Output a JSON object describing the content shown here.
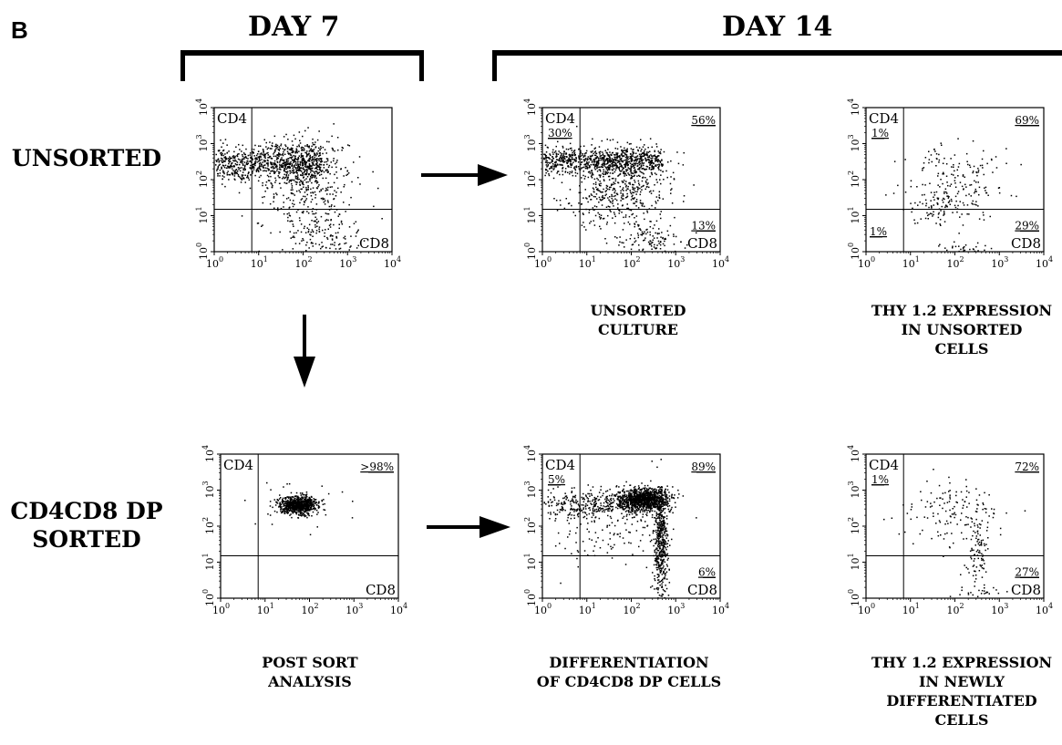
{
  "panel_label": "B",
  "day7_title": "DAY 7",
  "day14_title": "DAY 14",
  "row_labels": {
    "unsorted": "UNSORTED",
    "sorted_line1": "CD4CD8 DP",
    "sorted_line2": "SORTED"
  },
  "captions": {
    "unsorted_culture": [
      "UNSORTED",
      "CULTURE"
    ],
    "thy_unsorted": [
      "THY 1.2 EXPRESSION",
      "IN UNSORTED",
      "CELLS"
    ],
    "post_sort": [
      "POST SORT",
      "ANALYSIS"
    ],
    "differentiation": [
      "DIFFERENTIATION",
      "OF CD4CD8 DP CELLS"
    ],
    "thy_newly": [
      "THY 1.2 EXPRESSION",
      "IN NEWLY",
      "DIFFERENTIATED",
      "CELLS"
    ]
  },
  "chart_data": [
    {
      "type": "scatter",
      "id": "day7-unsorted",
      "xlabel": "CD8",
      "ylabel": "CD4",
      "scale": "log",
      "xlim": [
        1,
        10000
      ],
      "ylim": [
        1,
        10000
      ],
      "tick_labels": [
        "10",
        "10",
        "10",
        "10",
        "10"
      ],
      "tick_exponents": [
        "0",
        "1",
        "2",
        "3",
        "4"
      ],
      "gate": {
        "x": 7,
        "y": 15
      },
      "quadrant_labels": {},
      "clusters": [
        {
          "cx": 1.1,
          "cy": 2.45,
          "sx": 0.9,
          "sy": 0.25,
          "xmin": 0,
          "xmax": 2.4,
          "n": 700
        },
        {
          "cx": 1.9,
          "cy": 2.5,
          "sx": 0.45,
          "sy": 0.35,
          "n": 350
        },
        {
          "cx": 2.1,
          "cy": 1.5,
          "sx": 0.6,
          "sy": 0.6,
          "n": 250
        },
        {
          "cx": 2.5,
          "cy": 0.4,
          "sx": 0.4,
          "sy": 0.3,
          "n": 120
        }
      ]
    },
    {
      "type": "scatter",
      "id": "day14-unsorted-culture",
      "xlabel": "CD8",
      "ylabel": "CD4",
      "scale": "log",
      "xlim": [
        1,
        10000
      ],
      "ylim": [
        1,
        10000
      ],
      "tick_labels": [
        "10",
        "10",
        "10",
        "10",
        "10"
      ],
      "tick_exponents": [
        "0",
        "1",
        "2",
        "3",
        "4"
      ],
      "gate": {
        "x": 7,
        "y": 15
      },
      "quadrant_labels": {
        "upper_left": "30%",
        "upper_right": "56%",
        "lower_right": "13%"
      },
      "clusters": [
        {
          "cx": 1.2,
          "cy": 2.55,
          "sx": 0.85,
          "sy": 0.18,
          "xmin": 0,
          "xmax": 2.7,
          "n": 800
        },
        {
          "cx": 1.8,
          "cy": 2.2,
          "sx": 0.5,
          "sy": 0.4,
          "n": 300
        },
        {
          "cx": 1.6,
          "cy": 1.4,
          "sx": 0.6,
          "sy": 0.4,
          "n": 250
        },
        {
          "cx": 2.4,
          "cy": 0.3,
          "sx": 0.4,
          "sy": 0.25,
          "n": 120
        }
      ]
    },
    {
      "type": "scatter",
      "id": "day14-thy-unsorted",
      "xlabel": "CD8",
      "ylabel": "CD4",
      "scale": "log",
      "xlim": [
        1,
        10000
      ],
      "ylim": [
        1,
        10000
      ],
      "tick_labels": [
        "10",
        "10",
        "10",
        "10",
        "10"
      ],
      "tick_exponents": [
        "0",
        "1",
        "2",
        "3",
        "4"
      ],
      "gate": {
        "x": 7,
        "y": 15
      },
      "quadrant_labels": {
        "upper_left": "1%",
        "upper_right": "69%",
        "lower_right": "29%",
        "lower_left": "1%"
      },
      "clusters": [
        {
          "cx": 2.0,
          "cy": 2.0,
          "sx": 0.55,
          "sy": 0.55,
          "n": 180
        },
        {
          "cx": 1.6,
          "cy": 1.3,
          "sx": 0.4,
          "sy": 0.3,
          "n": 70
        },
        {
          "cx": 2.3,
          "cy": 0.1,
          "sx": 0.3,
          "sy": 0.08,
          "n": 30
        }
      ]
    },
    {
      "type": "scatter",
      "id": "day7-post-sort",
      "xlabel": "CD8",
      "ylabel": "CD4",
      "scale": "log",
      "xlim": [
        1,
        10000
      ],
      "ylim": [
        1,
        10000
      ],
      "tick_labels": [
        "10",
        "10",
        "10",
        "10",
        "10"
      ],
      "tick_exponents": [
        "0",
        "1",
        "2",
        "3",
        "4"
      ],
      "gate": {
        "x": 7,
        "y": 15
      },
      "quadrant_labels": {
        "upper_right": ">98%"
      },
      "clusters": [
        {
          "cx": 1.75,
          "cy": 2.6,
          "sx": 0.22,
          "sy": 0.13,
          "n": 800
        },
        {
          "cx": 1.8,
          "cy": 2.5,
          "sx": 0.6,
          "sy": 0.4,
          "n": 30
        }
      ]
    },
    {
      "type": "scatter",
      "id": "day14-differentiation",
      "xlabel": "CD8",
      "ylabel": "CD4",
      "scale": "log",
      "xlim": [
        1,
        10000
      ],
      "ylim": [
        1,
        10000
      ],
      "tick_labels": [
        "10",
        "10",
        "10",
        "10",
        "10"
      ],
      "tick_exponents": [
        "0",
        "1",
        "2",
        "3",
        "4"
      ],
      "gate": {
        "x": 7,
        "y": 15
      },
      "quadrant_labels": {
        "upper_left": "5%",
        "upper_right": "89%",
        "lower_right": "6%"
      },
      "clusters": [
        {
          "cx": 2.25,
          "cy": 2.75,
          "sx": 0.3,
          "sy": 0.16,
          "n": 1100
        },
        {
          "cx": 0.9,
          "cy": 2.6,
          "sx": 0.6,
          "sy": 0.2,
          "n": 300
        },
        {
          "cx": 2.65,
          "cy": 1.5,
          "sx": 0.08,
          "sy": 0.75,
          "n": 450
        },
        {
          "cx": 1.5,
          "cy": 2.0,
          "sx": 0.7,
          "sy": 0.5,
          "n": 150
        }
      ]
    },
    {
      "type": "scatter",
      "id": "day14-thy-newly",
      "xlabel": "CD8",
      "ylabel": "CD4",
      "scale": "log",
      "xlim": [
        1,
        10000
      ],
      "ylim": [
        1,
        10000
      ],
      "tick_labels": [
        "10",
        "10",
        "10",
        "10",
        "10"
      ],
      "tick_exponents": [
        "0",
        "1",
        "2",
        "3",
        "4"
      ],
      "gate": {
        "x": 7,
        "y": 15
      },
      "quadrant_labels": {
        "upper_left": "1%",
        "upper_right": "72%",
        "lower_right": "27%"
      },
      "clusters": [
        {
          "cx": 2.0,
          "cy": 2.4,
          "sx": 0.55,
          "sy": 0.45,
          "n": 140
        },
        {
          "cx": 2.5,
          "cy": 1.3,
          "sx": 0.12,
          "sy": 0.5,
          "n": 90
        },
        {
          "cx": 2.5,
          "cy": 0.15,
          "sx": 0.3,
          "sy": 0.1,
          "n": 25
        }
      ]
    }
  ]
}
